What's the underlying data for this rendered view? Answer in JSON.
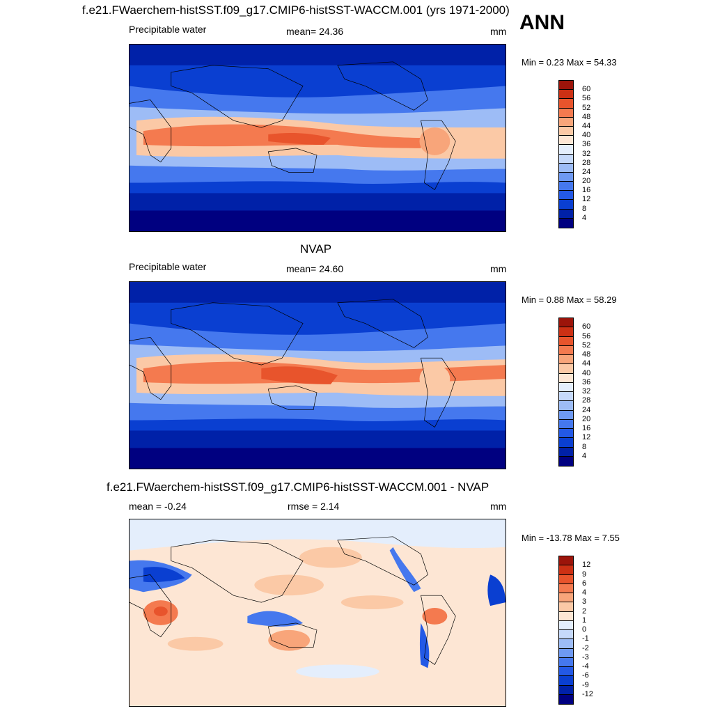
{
  "header": {
    "title": "f.e21.FWaerchem-histSST.f09_g17.CMIP6-histSST-WACCM.001 (yrs 1971-2000)",
    "season": "ANN"
  },
  "panel1": {
    "left_label": "Precipitable water",
    "center_label": "mean=  24.36",
    "unit": "mm",
    "minmax": "Min =   0.23 Max =  54.33",
    "colorbar_labels": [
      "60",
      "56",
      "52",
      "48",
      "44",
      "40",
      "36",
      "32",
      "28",
      "24",
      "20",
      "16",
      "12",
      "8",
      "4"
    ]
  },
  "panel2": {
    "title": "NVAP",
    "left_label": "Precipitable water",
    "center_label": "mean=  24.60",
    "unit": "mm",
    "minmax": "Min =   0.88 Max =  58.29",
    "colorbar_labels": [
      "60",
      "56",
      "52",
      "48",
      "44",
      "40",
      "36",
      "32",
      "28",
      "24",
      "20",
      "16",
      "12",
      "8",
      "4"
    ]
  },
  "panel3": {
    "title": "f.e21.FWaerchem-histSST.f09_g17.CMIP6-histSST-WACCM.001 - NVAP",
    "left_label": "mean =  -0.24",
    "center_label": "rmse =   2.14",
    "unit": "mm",
    "minmax": "Min = -13.78 Max =   7.55",
    "colorbar_labels": [
      "12",
      "9",
      "6",
      "4",
      "3",
      "2",
      "1",
      "0",
      "-1",
      "-2",
      "-3",
      "-4",
      "-6",
      "-9",
      "-12"
    ]
  },
  "colors": {
    "abs_scale": [
      "#000080",
      "#0021a8",
      "#0a3fd1",
      "#2359e6",
      "#4578ee",
      "#6e99f2",
      "#9dbcf6",
      "#c6d9fa",
      "#e4eefc",
      "#fde6d4",
      "#fbc9a6",
      "#f8a57a",
      "#f47a4f",
      "#e8542c",
      "#cc3014",
      "#9c140a"
    ],
    "diff_scale": [
      "#000080",
      "#0021a8",
      "#0a3fd1",
      "#2359e6",
      "#4578ee",
      "#6e99f2",
      "#9dbcf6",
      "#c6d9fa",
      "#e4eefc",
      "#fde6d4",
      "#fbc9a6",
      "#f8a57a",
      "#f47a4f",
      "#e8542c",
      "#cc3014",
      "#9c140a"
    ]
  }
}
